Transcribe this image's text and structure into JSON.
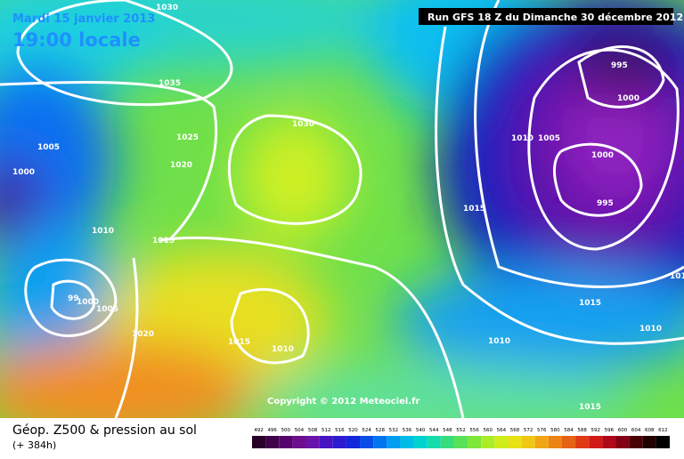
{
  "header": {
    "date": "Mardi 15 janvier 2013",
    "time": "19:00 locale",
    "run": "Run GFS 18 Z du Dimanche 30 décembre 2012"
  },
  "copyright": "Copyright © 2012 Meteociel.fr",
  "footer": {
    "title": "Géop. Z500 & pression au sol",
    "lead": "(+ 384h)"
  },
  "isobar_labels": [
    "1030",
    "1035",
    "1025",
    "1020",
    "1005",
    "1000",
    "1010",
    "1015",
    "1030",
    "995",
    "1000",
    "1010",
    "1005",
    "1000",
    "995",
    "1015",
    "1015",
    "1010",
    "1010",
    "1015",
    "1015",
    "1010",
    "1020",
    "99",
    "1000",
    "1005",
    "101"
  ],
  "scale": [
    "492",
    "496",
    "500",
    "504",
    "508",
    "512",
    "516",
    "520",
    "524",
    "528",
    "532",
    "536",
    "540",
    "544",
    "548",
    "552",
    "556",
    "560",
    "564",
    "568",
    "572",
    "576",
    "580",
    "584",
    "588",
    "592",
    "596",
    "600",
    "604",
    "608",
    "612"
  ]
}
